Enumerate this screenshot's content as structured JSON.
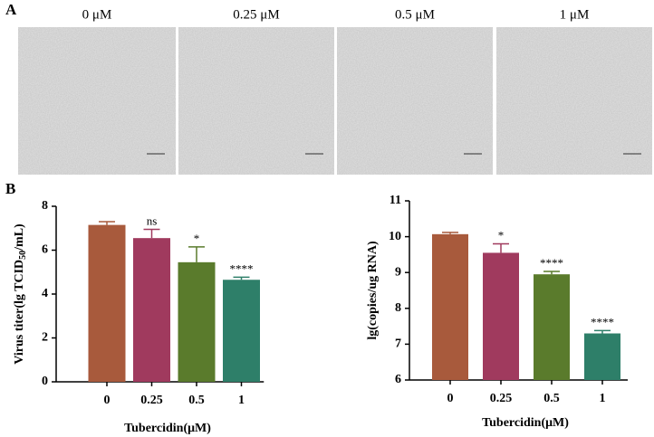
{
  "panel_labels": [
    "A",
    "B"
  ],
  "images": {
    "labels": [
      "0 μM",
      "0.25 μM",
      "0.5 μM",
      "1 μM"
    ]
  },
  "chart_data": [
    {
      "type": "bar",
      "ylabel_parts": [
        "Virus titer(lg TCID",
        "50",
        "/mL)"
      ],
      "xlabel": "Tubercidin(μM)",
      "categories": [
        "0",
        "0.25",
        "0.5",
        "1"
      ],
      "values": [
        7.15,
        6.55,
        5.45,
        4.65
      ],
      "errors": [
        0.15,
        0.4,
        0.7,
        0.12
      ],
      "annotations": [
        null,
        "ns",
        "*",
        "****"
      ],
      "colors": [
        "#a85a3c",
        "#a03a5e",
        "#5a7b2c",
        "#2e7f69"
      ],
      "ylim": [
        0,
        8
      ],
      "yticks": [
        0,
        2,
        4,
        6,
        8
      ]
    },
    {
      "type": "bar",
      "ylabel_parts": [
        "lg(copies/ug RNA)"
      ],
      "xlabel": "Tubercidin(μM)",
      "categories": [
        "0",
        "0.25",
        "0.5",
        "1"
      ],
      "values": [
        10.07,
        9.55,
        8.95,
        7.3
      ],
      "errors": [
        0.05,
        0.25,
        0.08,
        0.08
      ],
      "annotations": [
        null,
        "*",
        "****",
        "****"
      ],
      "colors": [
        "#a85a3c",
        "#a03a5e",
        "#5a7b2c",
        "#2e7f69"
      ],
      "ylim": [
        6,
        11
      ],
      "yticks": [
        6,
        7,
        8,
        9,
        10,
        11
      ]
    }
  ]
}
